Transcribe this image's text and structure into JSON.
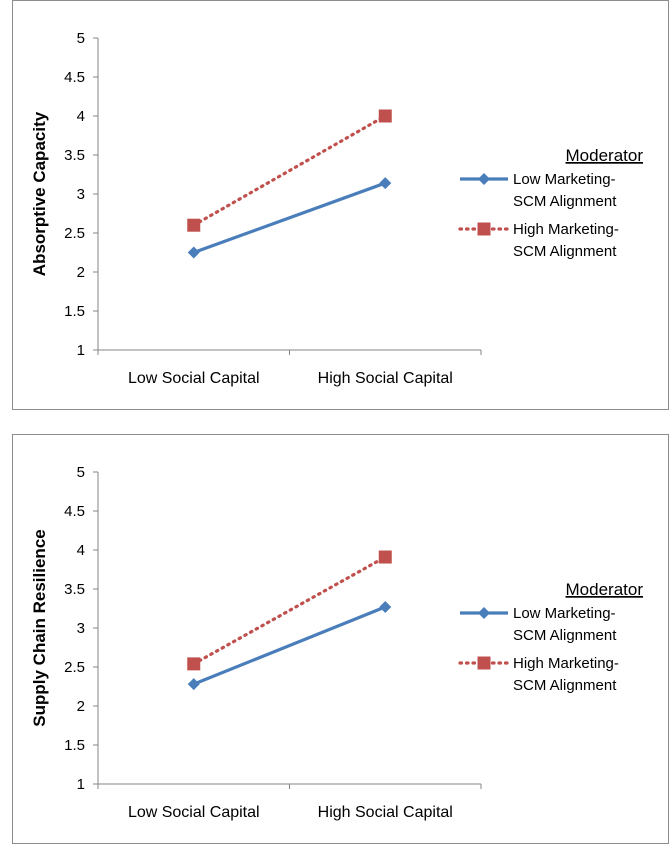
{
  "chart_data": [
    {
      "type": "line",
      "title": "",
      "ylabel": "Absorptive Capacity",
      "xlabel": "",
      "categories": [
        "Low Social Capital",
        "High Social Capital"
      ],
      "ylim": [
        1,
        5
      ],
      "yticks": [
        "1",
        "1.5",
        "2",
        "2.5",
        "3",
        "3.5",
        "4",
        "4.5",
        "5"
      ],
      "legend_title": "Moderator",
      "legend_position": "right",
      "grid": false,
      "series": [
        {
          "name": "Low Marketing-SCM Alignment",
          "label_lines": [
            "Low Marketing-",
            "SCM Alignment"
          ],
          "values": [
            2.25,
            3.14
          ],
          "color": "#4a7ebb",
          "style": "solid",
          "marker": "diamond"
        },
        {
          "name": "High Marketing-SCM Alignment",
          "label_lines": [
            "High Marketing-",
            "SCM Alignment"
          ],
          "values": [
            2.6,
            4.0
          ],
          "color": "#c0504d",
          "style": "dotted",
          "marker": "square"
        }
      ]
    },
    {
      "type": "line",
      "title": "",
      "ylabel": "Supply Chain Resilience",
      "xlabel": "",
      "categories": [
        "Low Social Capital",
        "High Social Capital"
      ],
      "ylim": [
        1,
        5
      ],
      "yticks": [
        "1",
        "1.5",
        "2",
        "2.5",
        "3",
        "3.5",
        "4",
        "4.5",
        "5"
      ],
      "legend_title": "Moderator",
      "legend_position": "right",
      "grid": false,
      "series": [
        {
          "name": "Low Marketing-SCM Alignment",
          "label_lines": [
            "Low Marketing-",
            "SCM Alignment"
          ],
          "values": [
            2.28,
            3.27
          ],
          "color": "#4a7ebb",
          "style": "solid",
          "marker": "diamond"
        },
        {
          "name": "High Marketing-SCM Alignment",
          "label_lines": [
            "High Marketing-",
            "SCM Alignment"
          ],
          "values": [
            2.54,
            3.91
          ],
          "color": "#c0504d",
          "style": "dotted",
          "marker": "square"
        }
      ]
    }
  ]
}
